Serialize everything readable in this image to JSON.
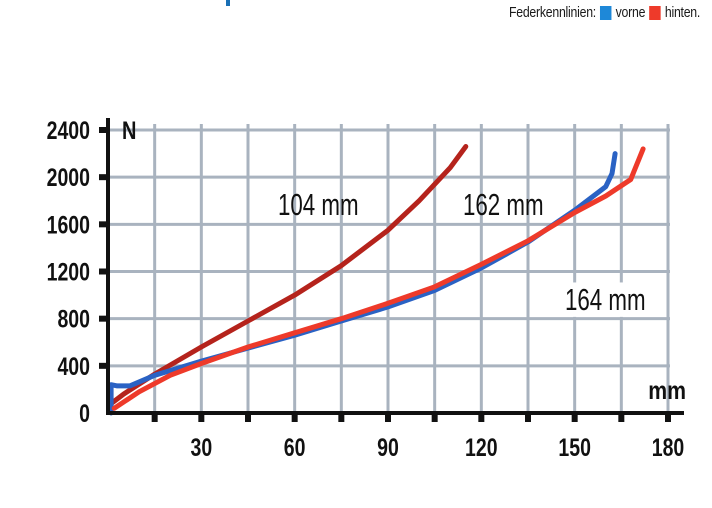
{
  "legend": {
    "title": "Federkennlinien:",
    "items": [
      {
        "label": "vorne",
        "color": "#1e88d8"
      },
      {
        "label": "hinten.",
        "color": "#ee3a2a"
      }
    ]
  },
  "chart_data": {
    "type": "line",
    "title": "Federkennlinien",
    "xlabel": "mm",
    "ylabel": "N",
    "xlim": [
      0,
      180
    ],
    "ylim": [
      0,
      2400
    ],
    "x_ticks": [
      30,
      60,
      90,
      120,
      150,
      180
    ],
    "x_minor_ticks": [
      15,
      45,
      75,
      105,
      135,
      165
    ],
    "y_ticks": [
      0,
      400,
      800,
      1200,
      1600,
      2000,
      2400
    ],
    "grid": true,
    "legend_position": "top-right",
    "annotations": [
      {
        "text": "104 mm",
        "x": 53,
        "y": 1780
      },
      {
        "text": "162 mm",
        "x": 114,
        "y": 1780
      },
      {
        "text": "164 mm",
        "x": 146,
        "y": 980
      }
    ],
    "series": [
      {
        "name": "104 mm",
        "color": "#b5231c",
        "x": [
          1,
          5,
          15,
          30,
          45,
          60,
          75,
          90,
          100,
          110,
          115
        ],
        "y": [
          80,
          160,
          330,
          560,
          780,
          1000,
          1250,
          1550,
          1800,
          2080,
          2260
        ]
      },
      {
        "name": "162 mm (vorne)",
        "color": "#2a62c4",
        "x": [
          1,
          1,
          3,
          7,
          15,
          30,
          45,
          60,
          75,
          90,
          105,
          120,
          135,
          150,
          160,
          162,
          163
        ],
        "y": [
          0,
          240,
          230,
          230,
          320,
          440,
          550,
          660,
          780,
          900,
          1040,
          1230,
          1450,
          1720,
          1920,
          2030,
          2200
        ]
      },
      {
        "name": "164 mm (hinten)",
        "color": "#ee3a2a",
        "x": [
          2,
          10,
          20,
          30,
          45,
          60,
          75,
          90,
          105,
          120,
          135,
          150,
          160,
          168,
          172
        ],
        "y": [
          40,
          180,
          320,
          420,
          560,
          680,
          800,
          930,
          1070,
          1260,
          1460,
          1700,
          1840,
          1980,
          2240
        ]
      }
    ]
  }
}
